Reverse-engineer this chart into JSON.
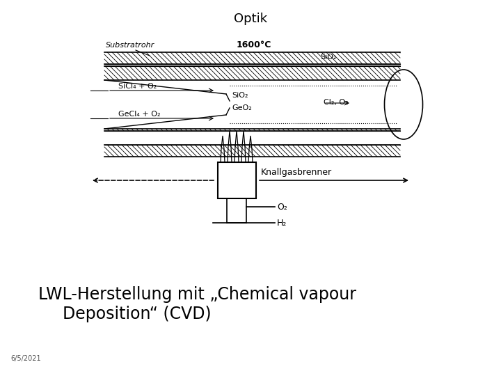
{
  "title": "Optik",
  "subtitle_line1": "LWL-Herstellung mit „Chemical vapour",
  "subtitle_line2": "Deposition“ (CVD)",
  "date": "6/5/2021",
  "bg_color": "#ffffff",
  "text_color": "#000000",
  "label_substratrohr": "Substratrohr",
  "label_temp": "1600°C",
  "label_sio2_top": "SiO₂",
  "label_sio2_mid": "SiO₂",
  "label_geo2": "GeO₂",
  "label_sicl4": "SiCl₄ + O₂",
  "label_gecl4": "GeCl₄ + O₂",
  "label_cl2o2": "Cl₂, O₂",
  "label_knall": "Knallgasbrenner",
  "label_o2": "O₂",
  "label_h2": "H₂"
}
